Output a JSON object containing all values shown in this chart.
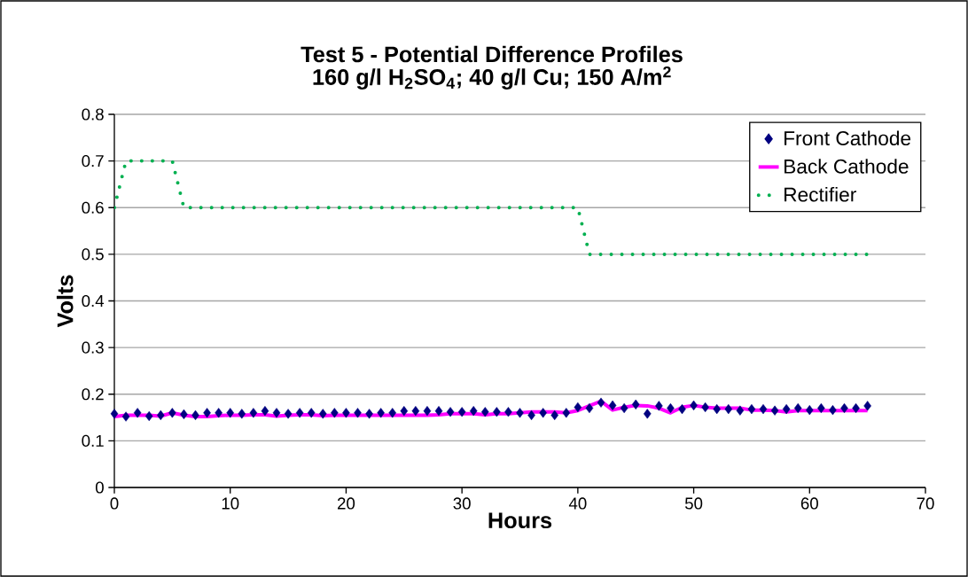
{
  "chart_data": {
    "type": "line",
    "title": "Test 5 - Potential Difference Profiles",
    "subtitle": "160 g/l H$_{2}$SO$_{4}$; 40 g/l Cu; 150 A/m$^{2}$",
    "xlabel": "Hours",
    "ylabel": "Volts",
    "x": [
      0,
      1,
      2,
      3,
      4,
      5,
      6,
      7,
      8,
      9,
      10,
      11,
      12,
      13,
      14,
      15,
      16,
      17,
      18,
      19,
      20,
      21,
      22,
      23,
      24,
      25,
      26,
      27,
      28,
      29,
      30,
      31,
      32,
      33,
      34,
      35,
      36,
      37,
      38,
      39,
      40,
      41,
      42,
      43,
      44,
      45,
      46,
      47,
      48,
      49,
      50,
      51,
      52,
      53,
      54,
      55,
      56,
      57,
      58,
      59,
      60,
      61,
      62,
      63,
      64,
      65
    ],
    "series": [
      {
        "name": "Front Cathode",
        "type": "scatter",
        "marker": "diamond",
        "color": "#000080",
        "values": [
          0.158,
          0.152,
          0.16,
          0.153,
          0.155,
          0.16,
          0.157,
          0.155,
          0.16,
          0.16,
          0.16,
          0.158,
          0.16,
          0.164,
          0.16,
          0.158,
          0.16,
          0.16,
          0.158,
          0.16,
          0.16,
          0.16,
          0.158,
          0.16,
          0.16,
          0.164,
          0.164,
          0.164,
          0.164,
          0.162,
          0.162,
          0.164,
          0.162,
          0.162,
          0.162,
          0.16,
          0.155,
          0.16,
          0.155,
          0.16,
          0.172,
          0.17,
          0.182,
          0.176,
          0.17,
          0.178,
          0.158,
          0.175,
          0.17,
          0.168,
          0.176,
          0.172,
          0.168,
          0.168,
          0.165,
          0.168,
          0.168,
          0.165,
          0.168,
          0.17,
          0.166,
          0.17,
          0.166,
          0.17,
          0.17,
          0.175
        ]
      },
      {
        "name": "Back Cathode",
        "line_style": "solid",
        "color": "#ff00ff",
        "values": [
          0.152,
          0.155,
          0.155,
          0.155,
          0.153,
          0.16,
          0.155,
          0.152,
          0.152,
          0.154,
          0.155,
          0.155,
          0.156,
          0.156,
          0.153,
          0.155,
          0.156,
          0.156,
          0.154,
          0.155,
          0.155,
          0.155,
          0.155,
          0.155,
          0.155,
          0.155,
          0.155,
          0.155,
          0.156,
          0.158,
          0.158,
          0.158,
          0.156,
          0.158,
          0.158,
          0.16,
          0.162,
          0.162,
          0.162,
          0.16,
          0.165,
          0.175,
          0.185,
          0.166,
          0.172,
          0.176,
          0.175,
          0.17,
          0.16,
          0.172,
          0.176,
          0.172,
          0.17,
          0.17,
          0.17,
          0.166,
          0.166,
          0.165,
          0.162,
          0.165,
          0.165,
          0.165,
          0.165,
          0.165,
          0.165,
          0.165
        ]
      },
      {
        "name": "Rectifier",
        "line_style": "dotted",
        "color": "#00b050",
        "values": [
          0.6,
          0.7,
          0.7,
          0.7,
          0.7,
          0.7,
          0.6,
          0.6,
          0.6,
          0.6,
          0.6,
          0.6,
          0.6,
          0.6,
          0.6,
          0.6,
          0.6,
          0.6,
          0.6,
          0.6,
          0.6,
          0.6,
          0.6,
          0.6,
          0.6,
          0.6,
          0.6,
          0.6,
          0.6,
          0.6,
          0.6,
          0.6,
          0.6,
          0.6,
          0.6,
          0.6,
          0.6,
          0.6,
          0.6,
          0.6,
          0.6,
          0.5,
          0.5,
          0.5,
          0.5,
          0.5,
          0.5,
          0.5,
          0.5,
          0.5,
          0.5,
          0.5,
          0.5,
          0.5,
          0.5,
          0.5,
          0.5,
          0.5,
          0.5,
          0.5,
          0.5,
          0.5,
          0.5,
          0.5,
          0.5,
          0.5
        ]
      }
    ],
    "xlim": [
      0,
      70
    ],
    "xticks": [
      0,
      10,
      20,
      30,
      40,
      50,
      60,
      70
    ],
    "ylim": [
      0,
      0.8
    ],
    "yticks": [
      0,
      0.1,
      0.2,
      0.3,
      0.4,
      0.5,
      0.6,
      0.7,
      0.8
    ],
    "grid": "y",
    "legend": "top right"
  }
}
